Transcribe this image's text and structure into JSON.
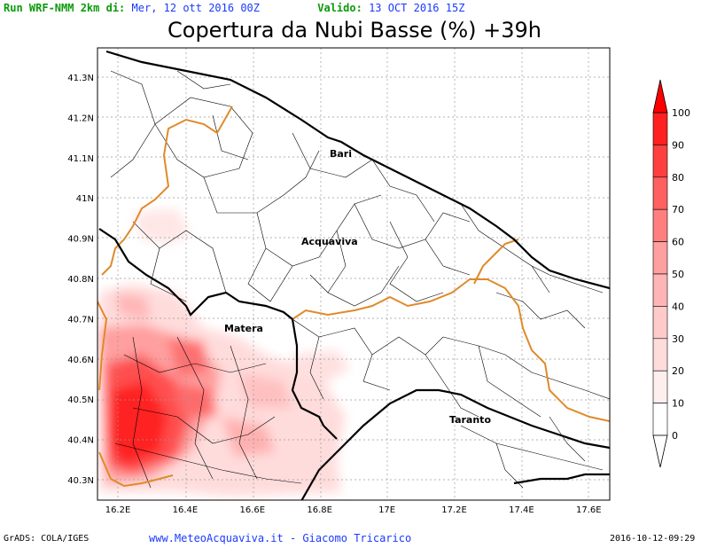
{
  "header": {
    "run_label": "Run WRF-NMM 2km di:",
    "run_date": "Mer, 12 ott 2016 00Z",
    "valid_label": "Valido:",
    "valid_date": "13 OCT 2016 15Z"
  },
  "title": "Copertura da Nubi Basse (%) +39h",
  "map": {
    "lat_ticks": [
      "41.3N",
      "41.2N",
      "41.1N",
      "41N",
      "40.9N",
      "40.8N",
      "40.7N",
      "40.6N",
      "40.5N",
      "40.4N",
      "40.3N"
    ],
    "lon_ticks": [
      "16.2E",
      "16.4E",
      "16.6E",
      "16.8E",
      "17E",
      "17.2E",
      "17.4E",
      "17.6E"
    ],
    "places": [
      "Bari",
      "Acquaviva",
      "Matera",
      "Taranto"
    ],
    "colors": {
      "coast": "#000000",
      "region_border": "#e08a2a",
      "municipal": "#000000",
      "cloud_scale_max": "#ff0000"
    }
  },
  "legend": {
    "labels": [
      "100",
      "90",
      "80",
      "70",
      "60",
      "50",
      "40",
      "30",
      "20",
      "10",
      "0"
    ],
    "colors": [
      "#ff0000",
      "#ff2020",
      "#ff4040",
      "#ff6060",
      "#ff7f7f",
      "#ff9f9f",
      "#ffb5b5",
      "#ffcaca",
      "#ffdcdc",
      "#ffeeee",
      "#ffffff"
    ]
  },
  "footer": {
    "left": "GrADS: COLA/IGES",
    "center": "www.MeteoAcquaviva.it  -  Giacomo Tricarico",
    "right": "2016-10-12-09:29"
  }
}
